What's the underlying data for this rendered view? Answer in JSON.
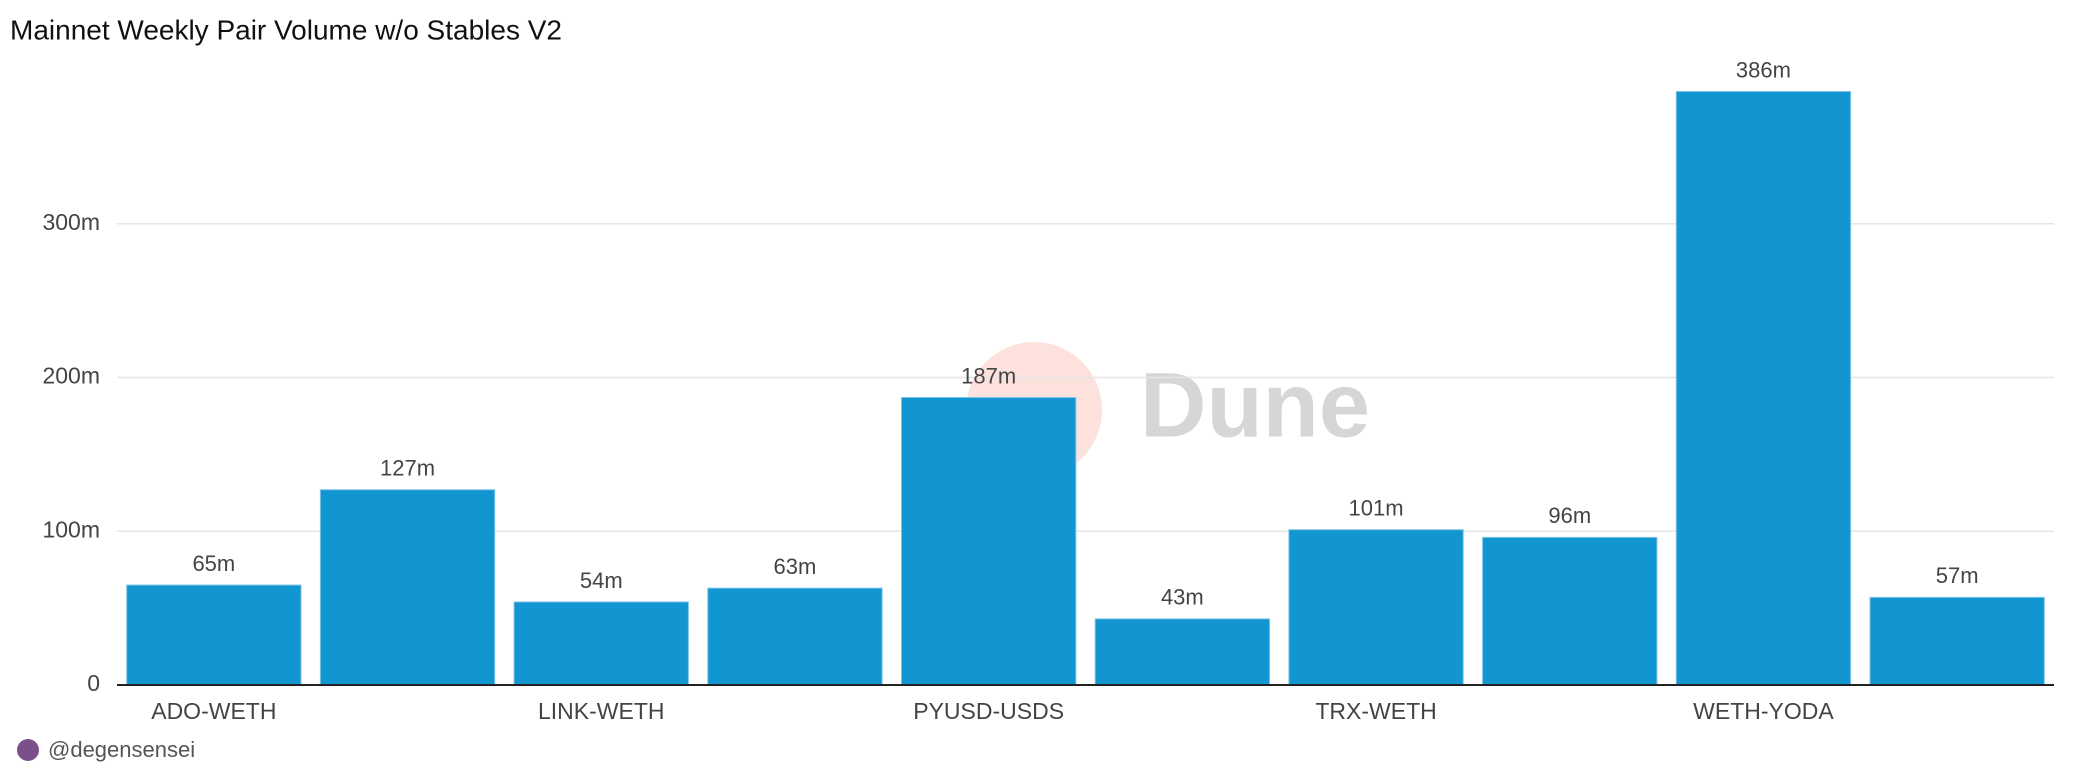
{
  "chart_data": {
    "type": "bar",
    "title": "Mainnet Weekly Pair Volume w/o Stables V2",
    "categories": [
      "ADO-WETH",
      null,
      "LINK-WETH",
      null,
      "PYUSD-USDS",
      null,
      "TRX-WETH",
      null,
      "WETH-YODA",
      null
    ],
    "values": [
      65,
      127,
      54,
      63,
      187,
      43,
      101,
      96,
      386,
      57
    ],
    "value_labels": [
      "65m",
      "127m",
      "54m",
      "63m",
      "187m",
      "43m",
      "101m",
      "96m",
      "386m",
      "57m"
    ],
    "color": "#1196d1",
    "ylim": [
      0,
      400
    ],
    "yticks": [
      0,
      {
        "value": 100,
        "label": "100m"
      },
      {
        "value": 200,
        "label": "200m"
      },
      {
        "value": 300,
        "label": "300m"
      }
    ],
    "grid": true,
    "watermark": "Dune",
    "author": "@degensensei"
  }
}
